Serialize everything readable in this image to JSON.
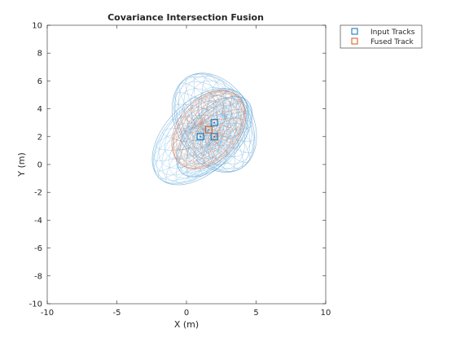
{
  "chart_data": {
    "type": "scatter",
    "title": "Covariance Intersection Fusion",
    "xlabel": "X (m)",
    "ylabel": "Y (m)",
    "xlim": [
      -10,
      10
    ],
    "ylim": [
      -10,
      10
    ],
    "xticks": [
      "-10",
      "-5",
      "0",
      "5",
      "10"
    ],
    "yticks": [
      "-10",
      "-8",
      "-6",
      "-4",
      "-2",
      "0",
      "2",
      "4",
      "6",
      "8",
      "10"
    ],
    "grid": false,
    "legend_position": "outside-top-right",
    "series": [
      {
        "name": "Input Tracks",
        "color": "#0072BD",
        "marker": "square",
        "points": [
          {
            "x": 1,
            "y": 2
          },
          {
            "x": 2,
            "y": 3
          },
          {
            "x": 2,
            "y": 2
          }
        ],
        "ellipses": [
          {
            "cx": 1,
            "cy": 2,
            "semi_major": 4.2,
            "semi_minor": 2.4,
            "angle_deg": 45
          },
          {
            "cx": 2,
            "cy": 3,
            "semi_major": 3.8,
            "semi_minor": 2.6,
            "angle_deg": -60
          },
          {
            "cx": 2,
            "cy": 2,
            "semi_major": 3.5,
            "semi_minor": 1.8,
            "angle_deg": 48
          }
        ]
      },
      {
        "name": "Fused Track",
        "color": "#D95319",
        "marker": "square",
        "points": [
          {
            "x": 1.6,
            "y": 2.5
          }
        ],
        "ellipses": [
          {
            "cx": 1.6,
            "cy": 2.5,
            "semi_major": 3.2,
            "semi_minor": 2.1,
            "angle_deg": 50
          }
        ]
      }
    ]
  }
}
